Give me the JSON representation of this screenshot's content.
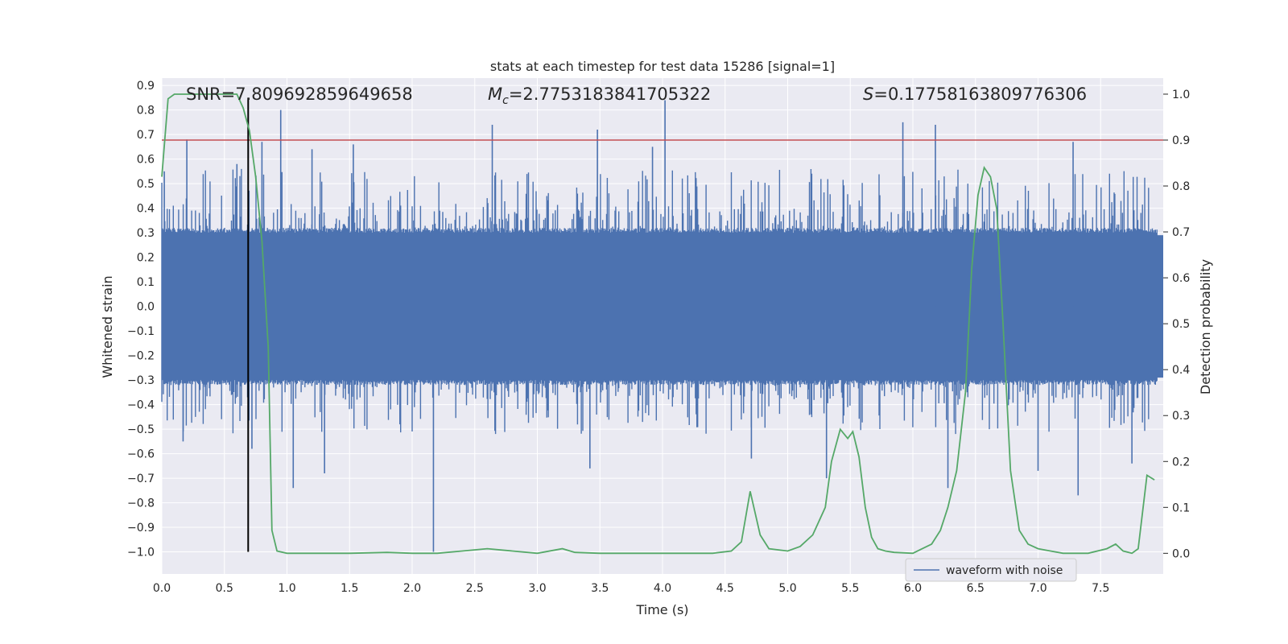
{
  "chart_data": {
    "type": "line",
    "title": "stats at each timestep for test data 15286 [signal=1]",
    "xlabel": "Time (s)",
    "ylabel": "Whitened strain",
    "y2label": "Detection probability",
    "xlim": [
      0.0,
      8.0
    ],
    "ylim": [
      -1.09,
      0.93
    ],
    "y2lim": [
      -0.045,
      1.035
    ],
    "x_ticks": [
      "0.0",
      "0.5",
      "1.0",
      "1.5",
      "2.0",
      "2.5",
      "3.0",
      "3.5",
      "4.0",
      "4.5",
      "5.0",
      "5.5",
      "6.0",
      "6.5",
      "7.0",
      "7.5"
    ],
    "x_tick_values": [
      0.0,
      0.5,
      1.0,
      1.5,
      2.0,
      2.5,
      3.0,
      3.5,
      4.0,
      4.5,
      5.0,
      5.5,
      6.0,
      6.5,
      7.0,
      7.5
    ],
    "y_ticks": [
      "0.9",
      "0.8",
      "0.7",
      "0.6",
      "0.5",
      "0.4",
      "0.3",
      "0.2",
      "0.1",
      "0.0",
      "−0.1",
      "−0.2",
      "−0.3",
      "−0.4",
      "−0.5",
      "−0.6",
      "−0.7",
      "−0.8",
      "−0.9",
      "−1.0"
    ],
    "y_tick_values": [
      0.9,
      0.8,
      0.7,
      0.6,
      0.5,
      0.4,
      0.3,
      0.2,
      0.1,
      0.0,
      -0.1,
      -0.2,
      -0.3,
      -0.4,
      -0.5,
      -0.6,
      -0.7,
      -0.8,
      -0.9,
      -1.0
    ],
    "y2_ticks": [
      "1.0",
      "0.9",
      "0.8",
      "0.7",
      "0.6",
      "0.5",
      "0.4",
      "0.3",
      "0.2",
      "0.1",
      "0.0"
    ],
    "y2_tick_values": [
      1.0,
      0.9,
      0.8,
      0.7,
      0.6,
      0.5,
      0.4,
      0.3,
      0.2,
      0.1,
      0.0
    ],
    "annotations": {
      "snr": "SNR=7.809692859649658",
      "mc_symbol": "M",
      "mc_subscript": "c",
      "mc_value": "=2.7753183841705322",
      "s_symbol": "S",
      "s_value": "=0.17758163809776306"
    },
    "threshold": {
      "value": 0.9,
      "axis": "y2",
      "color": "#c44e52"
    },
    "marker_line": {
      "x": 0.69,
      "y_top": 0.85,
      "y_bottom": -1.0,
      "color": "#000000"
    },
    "waveform": {
      "name": "waveform with noise",
      "color": "#4c72b0",
      "core_amplitude": 0.3,
      "spikes": [
        {
          "x": 0.02,
          "y": 0.55
        },
        {
          "x": 0.2,
          "y": 0.68
        },
        {
          "x": 0.6,
          "y": 0.58
        },
        {
          "x": 0.8,
          "y": 0.67
        },
        {
          "x": 0.95,
          "y": 0.8
        },
        {
          "x": 1.2,
          "y": 0.64
        },
        {
          "x": 1.53,
          "y": 0.66
        },
        {
          "x": 2.64,
          "y": 0.74
        },
        {
          "x": 3.48,
          "y": 0.72
        },
        {
          "x": 3.92,
          "y": 0.65
        },
        {
          "x": 4.02,
          "y": 0.84
        },
        {
          "x": 5.92,
          "y": 0.75
        },
        {
          "x": 6.18,
          "y": 0.74
        },
        {
          "x": 7.28,
          "y": 0.67
        },
        {
          "x": 0.17,
          "y": -0.55
        },
        {
          "x": 0.72,
          "y": -0.58
        },
        {
          "x": 1.05,
          "y": -0.74
        },
        {
          "x": 1.3,
          "y": -0.68
        },
        {
          "x": 2.17,
          "y": -1.0
        },
        {
          "x": 3.42,
          "y": -0.66
        },
        {
          "x": 4.71,
          "y": -0.62
        },
        {
          "x": 5.31,
          "y": -0.7
        },
        {
          "x": 6.28,
          "y": -0.74
        },
        {
          "x": 7.0,
          "y": -0.67
        },
        {
          "x": 7.32,
          "y": -0.77
        },
        {
          "x": 7.75,
          "y": -0.64
        }
      ]
    },
    "probability": {
      "name": "detection probability",
      "color": "#55a868",
      "x": [
        0.0,
        0.05,
        0.1,
        0.2,
        0.3,
        0.4,
        0.5,
        0.6,
        0.65,
        0.7,
        0.75,
        0.8,
        0.85,
        0.88,
        0.92,
        1.0,
        1.2,
        1.5,
        1.8,
        2.0,
        2.2,
        2.4,
        2.6,
        2.8,
        3.0,
        3.2,
        3.3,
        3.5,
        3.8,
        4.0,
        4.2,
        4.4,
        4.55,
        4.63,
        4.7,
        4.78,
        4.85,
        5.0,
        5.1,
        5.2,
        5.3,
        5.35,
        5.42,
        5.48,
        5.52,
        5.57,
        5.62,
        5.67,
        5.72,
        5.78,
        5.85,
        6.0,
        6.15,
        6.22,
        6.28,
        6.35,
        6.42,
        6.47,
        6.52,
        6.57,
        6.62,
        6.67,
        6.72,
        6.78,
        6.85,
        6.92,
        7.0,
        7.1,
        7.2,
        7.4,
        7.55,
        7.62,
        7.68,
        7.75,
        7.8,
        7.87,
        7.93
      ],
      "y": [
        0.82,
        0.99,
        1.0,
        1.0,
        1.0,
        1.0,
        1.0,
        1.0,
        0.97,
        0.92,
        0.82,
        0.68,
        0.45,
        0.05,
        0.005,
        0.0,
        0.0,
        0.0,
        0.002,
        0.0,
        0.0,
        0.005,
        0.01,
        0.005,
        0.0,
        0.01,
        0.002,
        0.0,
        0.0,
        0.0,
        0.0,
        0.0,
        0.005,
        0.025,
        0.135,
        0.04,
        0.01,
        0.005,
        0.015,
        0.04,
        0.1,
        0.2,
        0.27,
        0.25,
        0.265,
        0.21,
        0.1,
        0.035,
        0.01,
        0.005,
        0.002,
        0.0,
        0.02,
        0.05,
        0.1,
        0.18,
        0.35,
        0.62,
        0.78,
        0.84,
        0.82,
        0.75,
        0.5,
        0.18,
        0.05,
        0.02,
        0.01,
        0.005,
        0.0,
        0.0,
        0.01,
        0.02,
        0.005,
        0.0,
        0.01,
        0.17,
        0.16
      ]
    },
    "legend": {
      "label": "waveform with noise",
      "placement": "bottom-right"
    }
  }
}
